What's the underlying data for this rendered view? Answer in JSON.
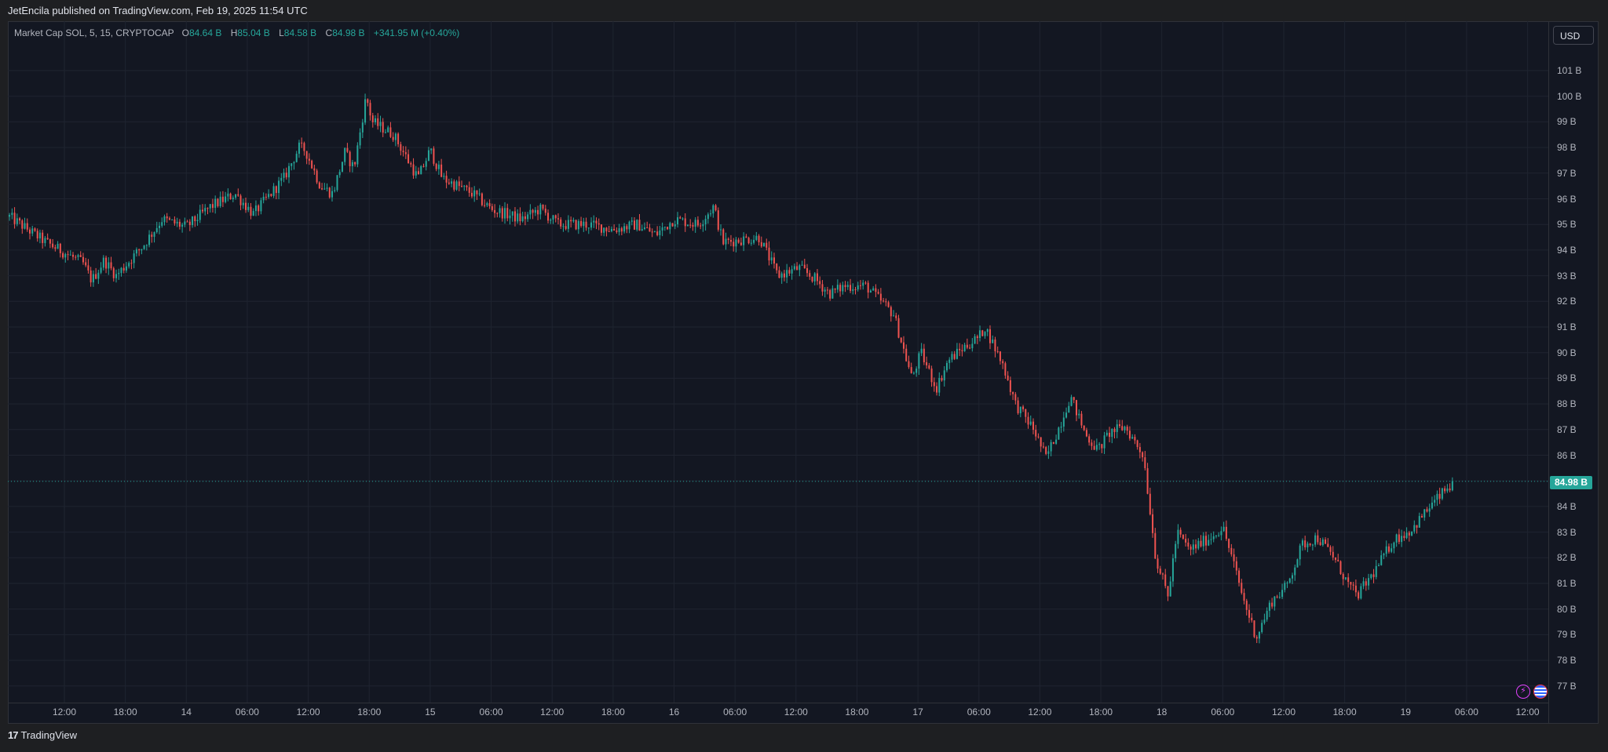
{
  "header": {
    "publish_line": "JetEncila published on TradingView.com, Feb 19, 2025 11:54 UTC"
  },
  "legend": {
    "symbol": "Market Cap SOL, 5, 15, CRYPTOCAP",
    "open_key": "O",
    "open": "84.64 B",
    "high_key": "H",
    "high": "85.04 B",
    "low_key": "L",
    "low": "84.58 B",
    "close_key": "C",
    "close": "84.98 B",
    "change": "+341.95 M (+0.40%)"
  },
  "currency_button": "USD",
  "last_price_label": "84.98 B",
  "footer": {
    "logo_text": "TradingView"
  },
  "icons": {
    "flash": "flash-icon",
    "flag": "us-flag-icon"
  },
  "colors": {
    "up": "#26a69a",
    "down": "#ef5350",
    "background": "#131722",
    "grid": "#1f2430"
  },
  "chart_data": {
    "type": "candlestick",
    "interval": "15",
    "y_unit": "B",
    "ylim": [
      76.6,
      102.6
    ],
    "yticks": [
      77,
      78,
      79,
      80,
      81,
      82,
      83,
      84,
      85,
      86,
      87,
      88,
      89,
      90,
      91,
      92,
      93,
      94,
      95,
      96,
      97,
      98,
      99,
      100,
      101
    ],
    "ytick_labels": [
      "77 B",
      "78 B",
      "79 B",
      "80 B",
      "81 B",
      "82 B",
      "83 B",
      "84 B",
      "",
      "86 B",
      "87 B",
      "88 B",
      "89 B",
      "90 B",
      "91 B",
      "92 B",
      "93 B",
      "94 B",
      "95 B",
      "96 B",
      "97 B",
      "98 B",
      "99 B",
      "100 B",
      "101 B"
    ],
    "xlim": [
      0,
      25
    ],
    "xticks": [
      {
        "x": 1.0,
        "label": "12:00"
      },
      {
        "x": 2.0,
        "label": "18:00"
      },
      {
        "x": 3.0,
        "label": "14"
      },
      {
        "x": 4.0,
        "label": "06:00"
      },
      {
        "x": 5.0,
        "label": "12:00"
      },
      {
        "x": 6.0,
        "label": "18:00"
      },
      {
        "x": 7.0,
        "label": "15"
      },
      {
        "x": 8.0,
        "label": "06:00"
      },
      {
        "x": 9.0,
        "label": "12:00"
      },
      {
        "x": 10.0,
        "label": "18:00"
      },
      {
        "x": 11.0,
        "label": "16"
      },
      {
        "x": 12.0,
        "label": "06:00"
      },
      {
        "x": 13.0,
        "label": "12:00"
      },
      {
        "x": 14.0,
        "label": "18:00"
      },
      {
        "x": 15.0,
        "label": "17"
      },
      {
        "x": 16.0,
        "label": "06:00"
      },
      {
        "x": 17.0,
        "label": "12:00"
      },
      {
        "x": 18.0,
        "label": "18:00"
      },
      {
        "x": 19.0,
        "label": "18"
      },
      {
        "x": 20.0,
        "label": "06:00"
      },
      {
        "x": 21.0,
        "label": "12:00"
      },
      {
        "x": 22.0,
        "label": "18:00"
      },
      {
        "x": 23.0,
        "label": "19"
      },
      {
        "x": 24.0,
        "label": "06:00"
      },
      {
        "x": 25.0,
        "label": "12:00"
      }
    ],
    "x_start": 0.1,
    "bars_per_unit": 24,
    "last_close": 84.98,
    "path_anchors": [
      [
        0.1,
        95.3
      ],
      [
        0.7,
        94.3
      ],
      [
        1.3,
        93.5
      ],
      [
        1.45,
        92.8
      ],
      [
        1.65,
        93.6
      ],
      [
        1.85,
        93.0
      ],
      [
        2.3,
        94.2
      ],
      [
        2.6,
        95.2
      ],
      [
        3.0,
        94.9
      ],
      [
        3.4,
        95.7
      ],
      [
        3.8,
        96.2
      ],
      [
        4.1,
        95.4
      ],
      [
        4.6,
        96.8
      ],
      [
        4.85,
        98.0
      ],
      [
        4.95,
        97.9
      ],
      [
        5.2,
        96.5
      ],
      [
        5.4,
        96.2
      ],
      [
        5.6,
        97.8
      ],
      [
        5.75,
        97.2
      ],
      [
        5.95,
        100.0
      ],
      [
        6.05,
        99.0
      ],
      [
        6.4,
        98.5
      ],
      [
        6.8,
        96.8
      ],
      [
        7.0,
        97.9
      ],
      [
        7.2,
        96.8
      ],
      [
        7.7,
        96.2
      ],
      [
        8.0,
        95.6
      ],
      [
        8.5,
        95.2
      ],
      [
        8.8,
        95.6
      ],
      [
        9.1,
        95.0
      ],
      [
        9.6,
        95.0
      ],
      [
        10.0,
        94.8
      ],
      [
        10.4,
        95.0
      ],
      [
        10.7,
        94.6
      ],
      [
        11.0,
        95.2
      ],
      [
        11.4,
        95.0
      ],
      [
        11.65,
        95.7
      ],
      [
        11.8,
        94.3
      ],
      [
        12.4,
        94.5
      ],
      [
        12.7,
        93.0
      ],
      [
        13.05,
        93.3
      ],
      [
        13.3,
        92.9
      ],
      [
        13.55,
        92.3
      ],
      [
        13.8,
        92.6
      ],
      [
        14.15,
        92.6
      ],
      [
        14.6,
        91.5
      ],
      [
        14.9,
        89.0
      ],
      [
        15.05,
        90.0
      ],
      [
        15.3,
        88.6
      ],
      [
        15.5,
        89.7
      ],
      [
        15.75,
        90.2
      ],
      [
        16.0,
        90.6
      ],
      [
        16.1,
        91.0
      ],
      [
        16.4,
        89.5
      ],
      [
        16.6,
        88.0
      ],
      [
        16.9,
        87.0
      ],
      [
        17.1,
        85.9
      ],
      [
        17.3,
        87.0
      ],
      [
        17.5,
        88.3
      ],
      [
        17.75,
        86.8
      ],
      [
        17.95,
        86.2
      ],
      [
        18.15,
        86.9
      ],
      [
        18.4,
        87.1
      ],
      [
        18.7,
        86.0
      ],
      [
        18.9,
        82.0
      ],
      [
        19.1,
        80.5
      ],
      [
        19.25,
        83.0
      ],
      [
        19.45,
        82.3
      ],
      [
        19.8,
        82.8
      ],
      [
        20.0,
        83.2
      ],
      [
        20.15,
        82.0
      ],
      [
        20.35,
        80.3
      ],
      [
        20.55,
        78.9
      ],
      [
        20.8,
        80.3
      ],
      [
        21.05,
        80.9
      ],
      [
        21.3,
        82.5
      ],
      [
        21.55,
        82.8
      ],
      [
        21.8,
        82.1
      ],
      [
        22.05,
        81.0
      ],
      [
        22.2,
        80.5
      ],
      [
        22.5,
        81.5
      ],
      [
        22.8,
        82.7
      ],
      [
        23.1,
        83.1
      ],
      [
        23.4,
        84.0
      ],
      [
        23.6,
        84.5
      ],
      [
        23.8,
        84.98
      ]
    ]
  }
}
